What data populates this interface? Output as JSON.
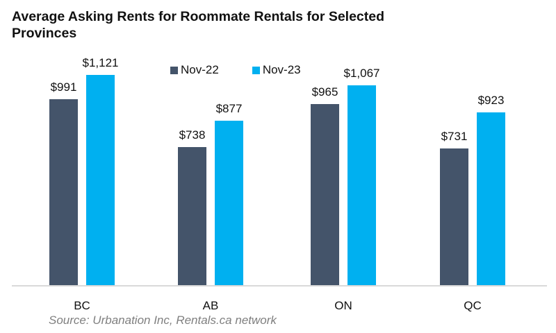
{
  "chart_data": {
    "type": "bar",
    "title": "Average Asking Rents for Roommate Rentals for Selected Provinces",
    "categories": [
      "BC",
      "AB",
      "ON",
      "QC"
    ],
    "series": [
      {
        "name": "Nov-22",
        "color": "#44546a",
        "values": [
          991,
          738,
          965,
          731
        ],
        "labels": [
          "$991",
          "$738",
          "$965",
          "$731"
        ]
      },
      {
        "name": "Nov-23",
        "color": "#00b0f0",
        "values": [
          1121,
          877,
          1067,
          923
        ],
        "labels": [
          "$1,121",
          "$877",
          "$1,067",
          "$923"
        ]
      }
    ],
    "xlabel": "",
    "ylabel": "",
    "ylim": [
      0,
      1200
    ],
    "grid": false,
    "legend_position": "top",
    "data_labels": true
  },
  "title": "Average Asking Rents for Roommate Rentals for Selected Provinces",
  "legend": [
    {
      "label": "Nov-22",
      "color": "#44546a"
    },
    {
      "label": "Nov-23",
      "color": "#00b0f0"
    }
  ],
  "source": "Source: Urbanation Inc, Rentals.ca network"
}
